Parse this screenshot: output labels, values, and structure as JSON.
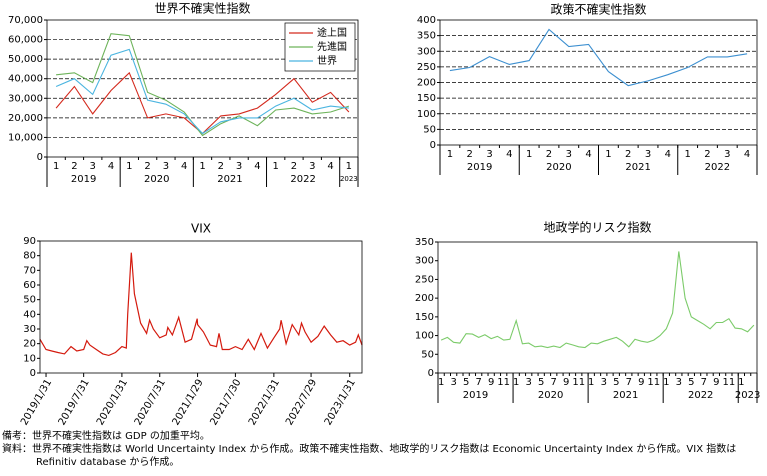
{
  "chart_data": [
    {
      "type": "line",
      "title": "世界不確実性指数",
      "categories": [
        "1",
        "2",
        "3",
        "4",
        "1",
        "2",
        "3",
        "4",
        "1",
        "2",
        "3",
        "4",
        "1",
        "2",
        "3",
        "4",
        "1"
      ],
      "groups": [
        {
          "label": "2019",
          "span": 4
        },
        {
          "label": "2020",
          "span": 4
        },
        {
          "label": "2021",
          "span": 4
        },
        {
          "label": "2022",
          "span": 4
        },
        {
          "label": "2023",
          "span": 1
        }
      ],
      "series": [
        {
          "name": "途上国",
          "color": "#d42a1e",
          "values": [
            25000,
            36000,
            22000,
            34000,
            43000,
            20000,
            22000,
            20000,
            12000,
            21000,
            22000,
            25000,
            32000,
            40000,
            28000,
            33000,
            23000
          ]
        },
        {
          "name": "先進国",
          "color": "#6db35a",
          "values": [
            42000,
            43000,
            38000,
            63000,
            62000,
            33000,
            29000,
            23000,
            11000,
            17000,
            21000,
            16000,
            24000,
            25000,
            22000,
            23000,
            26000
          ]
        },
        {
          "name": "世界",
          "color": "#4bb5e0",
          "values": [
            36000,
            40000,
            32000,
            52000,
            55000,
            29000,
            27000,
            22000,
            12000,
            18000,
            20000,
            20000,
            26000,
            30000,
            24000,
            26000,
            25000
          ]
        }
      ],
      "ylim": [
        0,
        70000
      ],
      "yticks": [
        0,
        {
          "value": 10000,
          "label": "10,000"
        },
        {
          "value": 20000,
          "label": "20,000"
        },
        {
          "value": 30000,
          "label": "30,000"
        },
        {
          "value": 40000,
          "label": "40,000"
        },
        {
          "value": 50000,
          "label": "50,000"
        },
        {
          "value": 60000,
          "label": "60,000"
        },
        {
          "value": 70000,
          "label": "70,000"
        }
      ],
      "grid": true,
      "legend": "upper right"
    },
    {
      "type": "line",
      "title": "政策不確実性指数",
      "categories": [
        "1",
        "2",
        "3",
        "4",
        "1",
        "2",
        "3",
        "4",
        "1",
        "2",
        "3",
        "4",
        "1",
        "2",
        "3",
        "4"
      ],
      "groups": [
        {
          "label": "2019",
          "span": 4
        },
        {
          "label": "2020",
          "span": 4
        },
        {
          "label": "2021",
          "span": 4
        },
        {
          "label": "2022",
          "span": 4
        }
      ],
      "values": [
        238,
        248,
        283,
        258,
        270,
        370,
        315,
        322,
        235,
        190,
        205,
        225,
        248,
        282,
        282,
        292
      ],
      "color": "#3c8fd0",
      "ylim": [
        0,
        400
      ],
      "yticks": [
        0,
        50,
        100,
        150,
        200,
        250,
        300,
        350,
        400
      ],
      "grid": true
    },
    {
      "type": "timeseries",
      "title": "VIX",
      "x": [
        "2019/1/2",
        "2019/1/31",
        "2019/2/28",
        "2019/3/29",
        "2019/4/30",
        "2019/5/31",
        "2019/6/28",
        "2019/7/31",
        "2019/8/15",
        "2019/8/30",
        "2019/9/30",
        "2019/10/31",
        "2019/11/29",
        "2019/12/31",
        "2020/1/31",
        "2020/2/21",
        "2020/2/28",
        "2020/3/16",
        "2020/3/31",
        "2020/4/30",
        "2020/5/29",
        "2020/6/12",
        "2020/6/30",
        "2020/7/31",
        "2020/8/31",
        "2020/9/8",
        "2020/9/30",
        "2020/10/30",
        "2020/11/30",
        "2020/12/31",
        "2021/1/27",
        "2021/1/29",
        "2021/2/26",
        "2021/3/31",
        "2021/4/30",
        "2021/5/12",
        "2021/5/28",
        "2021/6/30",
        "2021/7/30",
        "2021/8/31",
        "2021/9/30",
        "2021/10/29",
        "2021/11/30",
        "2021/12/31",
        "2022/1/31",
        "2022/2/28",
        "2022/3/7",
        "2022/3/31",
        "2022/4/29",
        "2022/5/31",
        "2022/6/13",
        "2022/6/30",
        "2022/7/29",
        "2022/8/31",
        "2022/9/30",
        "2022/10/31",
        "2022/11/30",
        "2022/12/30",
        "2023/1/31",
        "2023/2/28",
        "2023/3/13",
        "2023/3/31"
      ],
      "values": [
        23,
        16,
        15,
        14,
        13,
        18,
        15,
        16,
        22,
        19,
        16,
        13,
        12,
        14,
        18,
        17,
        40,
        82,
        54,
        34,
        27,
        36,
        30,
        24,
        26,
        31,
        26,
        38,
        21,
        23,
        37,
        33,
        28,
        19,
        18,
        27,
        16,
        16,
        18,
        16,
        23,
        16,
        27,
        17,
        24,
        30,
        36,
        20,
        33,
        26,
        34,
        28,
        21,
        25,
        32,
        26,
        21,
        22,
        19,
        21,
        26,
        19
      ],
      "color": "#d41a0e",
      "xlim": [
        "2019/1/2",
        "2023/3/31"
      ],
      "xticks": [
        "2019/1/31",
        "2019/7/31",
        "2020/1/31",
        "2020/7/31",
        "2021/1/29",
        "2021/7/30",
        "2022/1/31",
        "2022/7/29",
        "2023/1/31"
      ],
      "ylim": [
        0,
        90
      ],
      "yticks": [
        0,
        10,
        20,
        30,
        40,
        50,
        60,
        70,
        80,
        90
      ],
      "grid": false
    },
    {
      "type": "line",
      "title": "地政学的リスク指数",
      "categories": [
        "1",
        null,
        "3",
        null,
        "5",
        null,
        "7",
        null,
        "9",
        null,
        "11",
        null,
        "1",
        null,
        "3",
        null,
        "5",
        null,
        "7",
        null,
        "9",
        null,
        "11",
        null,
        "1",
        null,
        "3",
        null,
        "5",
        null,
        "7",
        null,
        "9",
        null,
        "11",
        null,
        "1",
        null,
        "3",
        null,
        "5",
        null,
        "7",
        null,
        "9",
        null,
        "11",
        null,
        "1",
        null,
        null
      ],
      "groups": [
        {
          "label": "2019",
          "span": 12
        },
        {
          "label": "2020",
          "span": 12
        },
        {
          "label": "2021",
          "span": 12
        },
        {
          "label": "2022",
          "span": 12
        },
        {
          "label": "2023",
          "span": 3
        }
      ],
      "values": [
        88,
        95,
        82,
        80,
        105,
        104,
        95,
        102,
        92,
        98,
        88,
        90,
        140,
        78,
        80,
        70,
        72,
        68,
        72,
        68,
        80,
        75,
        70,
        68,
        80,
        78,
        85,
        90,
        95,
        85,
        70,
        90,
        85,
        82,
        88,
        100,
        118,
        160,
        325,
        200,
        150,
        140,
        130,
        118,
        135,
        135,
        145,
        120,
        118,
        110,
        128
      ],
      "color": "#7ccb6a",
      "ylim": [
        0,
        350
      ],
      "yticks": [
        0,
        50,
        100,
        150,
        200,
        250,
        300,
        350
      ],
      "grid": false
    }
  ],
  "notes": [
    "備考：世界不確実性指数は GDP の加重平均。",
    "資料：世界不確実性指数は World Uncertainty Index から作成。政策不確実性指数、地政学的リスク指数は Economic Uncertainty Index から作成。VIX 指数は Refinitiv database から作成。"
  ]
}
